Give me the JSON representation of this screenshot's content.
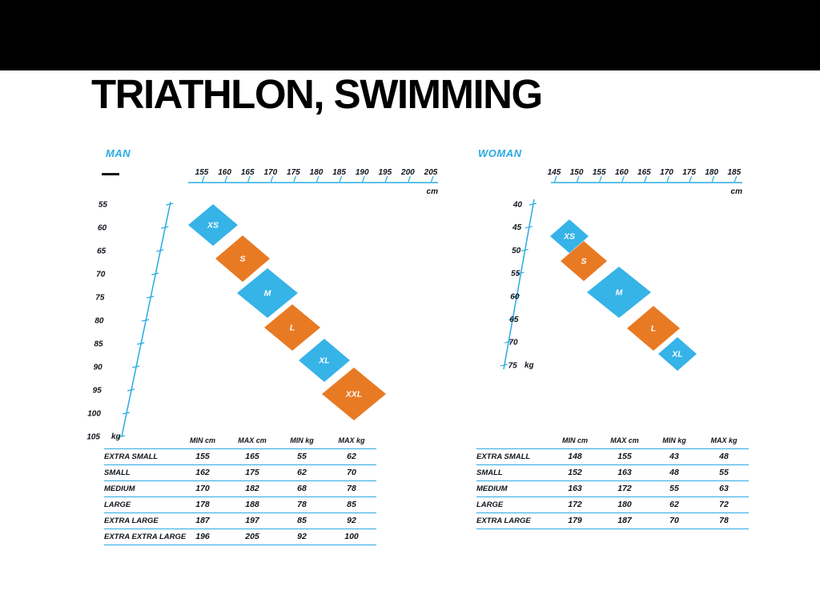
{
  "title": "TRIATHLON, SWIMMING",
  "colors": {
    "accent_blue": "#29abe2",
    "diamond_blue": "#36b3e7",
    "diamond_orange": "#e87a24",
    "text_dark": "#10151c",
    "top_bar": "#000000"
  },
  "chart_data": [
    {
      "type": "scatter",
      "id": "man",
      "title": "MAN",
      "x_unit": "cm",
      "y_unit": "kg",
      "xlim": [
        155,
        205
      ],
      "ylim": [
        55,
        105
      ],
      "x_ticks": [
        "155",
        "160",
        "165",
        "170",
        "175",
        "180",
        "185",
        "190",
        "195",
        "200",
        "205"
      ],
      "y_ticks": [
        "55",
        "60",
        "65",
        "70",
        "75",
        "80",
        "85",
        "90",
        "95",
        "100",
        "105"
      ],
      "sizes": [
        {
          "label": "XS",
          "color": "blue"
        },
        {
          "label": "S",
          "color": "orange"
        },
        {
          "label": "M",
          "color": "blue"
        },
        {
          "label": "L",
          "color": "orange"
        },
        {
          "label": "XL",
          "color": "blue"
        },
        {
          "label": "XXL",
          "color": "orange"
        }
      ],
      "table": {
        "headers": [
          "MIN cm",
          "MAX cm",
          "MIN kg",
          "MAX kg"
        ],
        "rows": [
          {
            "label": "EXTRA SMALL",
            "values": [
              "155",
              "165",
              "55",
              "62"
            ]
          },
          {
            "label": "SMALL",
            "values": [
              "162",
              "175",
              "62",
              "70"
            ]
          },
          {
            "label": "MEDIUM",
            "values": [
              "170",
              "182",
              "68",
              "78"
            ]
          },
          {
            "label": "LARGE",
            "values": [
              "178",
              "188",
              "78",
              "85"
            ]
          },
          {
            "label": "EXTRA LARGE",
            "values": [
              "187",
              "197",
              "85",
              "92"
            ]
          },
          {
            "label": "EXTRA EXTRA LARGE",
            "values": [
              "196",
              "205",
              "92",
              "100"
            ]
          }
        ]
      }
    },
    {
      "type": "scatter",
      "id": "woman",
      "title": "WOMAN",
      "x_unit": "cm",
      "y_unit": "kg",
      "xlim": [
        145,
        185
      ],
      "ylim": [
        40,
        75
      ],
      "x_ticks": [
        "145",
        "150",
        "155",
        "160",
        "165",
        "170",
        "175",
        "180",
        "185"
      ],
      "y_ticks": [
        "40",
        "45",
        "50",
        "55",
        "60",
        "65",
        "70",
        "75"
      ],
      "sizes": [
        {
          "label": "XS",
          "color": "blue"
        },
        {
          "label": "S",
          "color": "orange"
        },
        {
          "label": "M",
          "color": "blue"
        },
        {
          "label": "L",
          "color": "orange"
        },
        {
          "label": "XL",
          "color": "blue"
        }
      ],
      "table": {
        "headers": [
          "MIN cm",
          "MAX cm",
          "MIN kg",
          "MAX kg"
        ],
        "rows": [
          {
            "label": "EXTRA SMALL",
            "values": [
              "148",
              "155",
              "43",
              "48"
            ]
          },
          {
            "label": "SMALL",
            "values": [
              "152",
              "163",
              "48",
              "55"
            ]
          },
          {
            "label": "MEDIUM",
            "values": [
              "163",
              "172",
              "55",
              "63"
            ]
          },
          {
            "label": "LARGE",
            "values": [
              "172",
              "180",
              "62",
              "72"
            ]
          },
          {
            "label": "EXTRA LARGE",
            "values": [
              "179",
              "187",
              "70",
              "78"
            ]
          }
        ]
      }
    }
  ]
}
